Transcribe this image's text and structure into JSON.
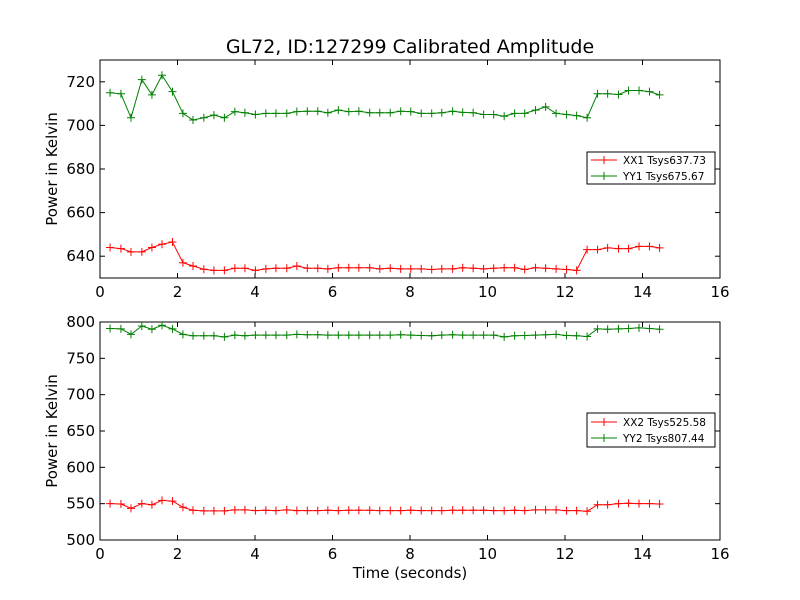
{
  "title": "GL72, ID:127299 Calibrated Amplitude",
  "xlabel": "Time (seconds)",
  "chart_data": [
    {
      "type": "line",
      "ylabel": "Power in Kelvin",
      "xlim": [
        0,
        16
      ],
      "ylim": [
        630,
        730
      ],
      "xticks": [
        0,
        2,
        4,
        6,
        8,
        10,
        12,
        14,
        16
      ],
      "yticks": [
        640,
        660,
        680,
        700,
        720
      ],
      "grid": false,
      "legend_position": "center-right",
      "x": [
        0.26,
        0.54,
        0.8,
        1.08,
        1.34,
        1.6,
        1.87,
        2.14,
        2.4,
        2.68,
        2.94,
        3.21,
        3.48,
        3.74,
        4.01,
        4.28,
        4.54,
        4.82,
        5.08,
        5.35,
        5.62,
        5.88,
        6.15,
        6.42,
        6.68,
        6.96,
        7.22,
        7.49,
        7.76,
        8.02,
        8.29,
        8.56,
        8.82,
        9.1,
        9.36,
        9.63,
        9.9,
        10.16,
        10.43,
        10.7,
        10.96,
        11.24,
        11.5,
        11.77,
        12.04,
        12.3,
        12.57,
        12.84,
        13.1,
        13.38,
        13.64,
        13.91,
        14.18,
        14.44
      ],
      "series": [
        {
          "name": "XX1 Tsys637.73",
          "color": "#ff0000",
          "values": [
            644,
            643.5,
            642,
            642,
            644,
            645.5,
            646.5,
            637,
            635.5,
            634,
            633.5,
            633.5,
            634.5,
            634.5,
            633.5,
            634.2,
            634.5,
            634.5,
            635.5,
            634.5,
            634.5,
            634.2,
            634.7,
            634.7,
            634.7,
            634.7,
            634.2,
            634.5,
            634.2,
            634.2,
            634.2,
            633.9,
            634.2,
            634.2,
            634.7,
            634.5,
            634.2,
            634.5,
            634.7,
            634.7,
            633.9,
            634.7,
            634.5,
            634.2,
            633.9,
            633.5,
            643,
            643,
            643.8,
            643.5,
            643.5,
            644.5,
            644.5,
            643.8
          ]
        },
        {
          "name": "YY1 Tsys675.67",
          "color": "#008000",
          "values": [
            715,
            714.5,
            703.5,
            721,
            714,
            723,
            715.5,
            705.5,
            702.5,
            703.5,
            704.7,
            703.5,
            706.3,
            705.8,
            705,
            705.5,
            705.5,
            705.5,
            706.3,
            706.5,
            706.5,
            705.8,
            707,
            706.3,
            706.5,
            705.8,
            705.8,
            705.8,
            706.5,
            706.3,
            705.5,
            705.5,
            705.8,
            706.5,
            706,
            705.8,
            705,
            705,
            704.2,
            705.5,
            705.5,
            707,
            708.5,
            705.5,
            705,
            704.5,
            703.5,
            714.5,
            714.5,
            714.2,
            716,
            716,
            715.5,
            714
          ]
        }
      ]
    },
    {
      "type": "line",
      "ylabel": "Power in Kelvin",
      "xlabel": "Time (seconds)",
      "xlim": [
        0,
        16
      ],
      "ylim": [
        500,
        800
      ],
      "xticks": [
        0,
        2,
        4,
        6,
        8,
        10,
        12,
        14,
        16
      ],
      "yticks": [
        500,
        550,
        600,
        650,
        700,
        750,
        800
      ],
      "grid": false,
      "legend_position": "center-right",
      "x": [
        0.26,
        0.54,
        0.8,
        1.08,
        1.34,
        1.6,
        1.87,
        2.14,
        2.4,
        2.68,
        2.94,
        3.21,
        3.48,
        3.74,
        4.01,
        4.28,
        4.54,
        4.82,
        5.08,
        5.35,
        5.62,
        5.88,
        6.15,
        6.42,
        6.68,
        6.96,
        7.22,
        7.49,
        7.76,
        8.02,
        8.29,
        8.56,
        8.82,
        9.1,
        9.36,
        9.63,
        9.9,
        10.16,
        10.43,
        10.7,
        10.96,
        11.24,
        11.5,
        11.77,
        12.04,
        12.3,
        12.57,
        12.84,
        13.1,
        13.38,
        13.64,
        13.91,
        14.18,
        14.44
      ],
      "series": [
        {
          "name": "XX2 Tsys525.58",
          "color": "#ff0000",
          "values": [
            550,
            549.5,
            543.5,
            550,
            548.5,
            554.5,
            553.5,
            545,
            541,
            540,
            540,
            540,
            541.5,
            541.5,
            540.5,
            541,
            540.5,
            541.5,
            540.5,
            540.5,
            540.5,
            541,
            540.5,
            541,
            541,
            541,
            540.5,
            540.5,
            540.5,
            541,
            540.5,
            540.5,
            540.5,
            541,
            541,
            541,
            541,
            540.5,
            540.5,
            541,
            540.5,
            541.5,
            541.5,
            541.5,
            540.5,
            540.5,
            539.5,
            548.5,
            548.5,
            550,
            550.5,
            550,
            550,
            549.5
          ]
        },
        {
          "name": "YY2 Tsys807.44",
          "color": "#008000",
          "values": [
            791,
            790.5,
            783,
            794.5,
            790,
            795.5,
            790.5,
            783,
            781,
            781,
            781,
            779.5,
            782,
            781,
            782,
            782,
            782,
            782,
            783,
            782.5,
            782.5,
            782,
            782,
            782,
            782,
            782,
            782,
            782,
            782.5,
            782,
            781.5,
            781,
            782,
            782.5,
            782,
            782,
            782,
            782,
            779.5,
            781,
            781.5,
            782,
            782.5,
            783,
            781.5,
            781,
            780,
            790.5,
            790,
            790.5,
            791,
            792,
            791,
            790
          ]
        }
      ]
    }
  ]
}
